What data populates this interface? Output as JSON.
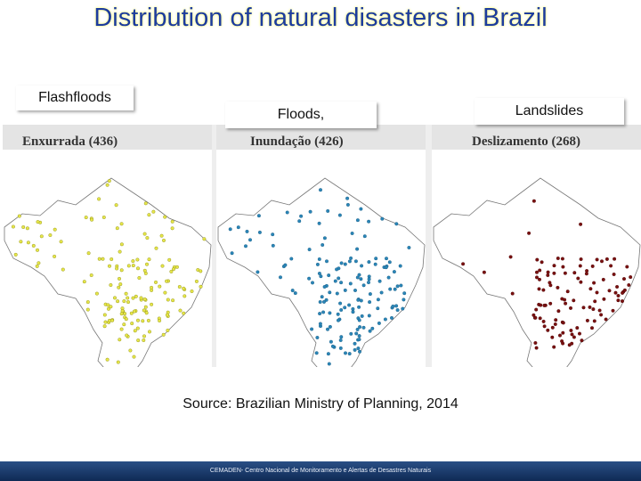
{
  "title": "Distribution of natural disasters in Brazil",
  "panels": [
    {
      "label": "Flashfloods",
      "map_title": "Enxurrada (436)"
    },
    {
      "label": "Floods,",
      "map_title": "Inundação (426)"
    },
    {
      "label": "Landslides",
      "map_title": "Deslizamento (268)"
    }
  ],
  "source": "Source: Brazilian Ministry of Planning, 2014",
  "footer": "CEMADEN- Centro Nacional de Monitoramento e Alertas de Desastres Naturais"
}
